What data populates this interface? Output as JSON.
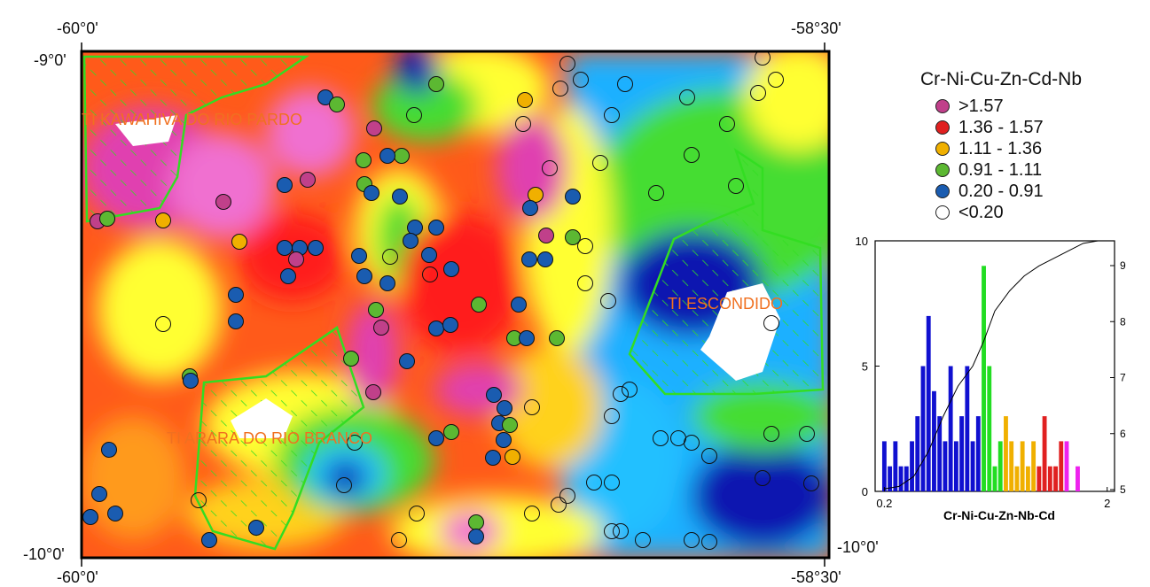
{
  "map": {
    "coords": {
      "top_left": "-60°0'",
      "top_right": "-58°30'",
      "lat_top": "-9°0'",
      "lat_bottom_left": "-10°0'",
      "lat_bottom_right": "-10°0'",
      "bottom_left": "-60°0'",
      "bottom_right": "-58°30'"
    },
    "areas": {
      "kawahiva": "TI KAWAHIVA DO RIO PARDO",
      "escondido": "TI ESCONDIDO",
      "arara": "TI ARARA DO RIO BRANCO"
    },
    "colors": {
      "magenta": "#e040b0",
      "red": "#ff1a1a",
      "orange": "#ff8c00",
      "yellow": "#ffff33",
      "green": "#44dd33",
      "cyan": "#22c0ff",
      "blue": "#0a18b0",
      "reserve": "#33dd22",
      "reserve_label": "#f07020"
    }
  },
  "legend": {
    "title": "Cr-Ni-Cu-Zn-Cd-Nb",
    "classes": [
      {
        "label": ">1.57",
        "color": "#c0408a"
      },
      {
        "label": "1.36 - 1.57",
        "color": "#e02020"
      },
      {
        "label": "1.11 - 1.36",
        "color": "#f0b000"
      },
      {
        "label": "0.91 - 1.11",
        "color": "#5cb832"
      },
      {
        "label": "0.20 - 0.91",
        "color": "#1a5cb0"
      },
      {
        "label": "<0.20",
        "color": "#ffffff"
      }
    ]
  },
  "chart_data": {
    "type": "bar",
    "title": "",
    "xlabel": "Cr-Ni-Cu-Zn-Nb-Cd",
    "ylabel": "",
    "x_tick_labels": [
      "0.2",
      "2"
    ],
    "y_tick_labels": [
      "0",
      "5",
      "10"
    ],
    "y2_tick_labels": [
      "5",
      "6",
      "7",
      "8",
      "9"
    ],
    "ylim": [
      0,
      10
    ],
    "bars": [
      {
        "x": 0.2,
        "value": 2,
        "color": "#1010d0"
      },
      {
        "x": 0.23,
        "value": 1,
        "color": "#1010d0"
      },
      {
        "x": 0.26,
        "value": 2,
        "color": "#1010d0"
      },
      {
        "x": 0.29,
        "value": 1,
        "color": "#1010d0"
      },
      {
        "x": 0.32,
        "value": 1,
        "color": "#1010d0"
      },
      {
        "x": 0.35,
        "value": 2,
        "color": "#1010d0"
      },
      {
        "x": 0.38,
        "value": 3,
        "color": "#1010d0"
      },
      {
        "x": 0.41,
        "value": 5,
        "color": "#1010d0"
      },
      {
        "x": 0.44,
        "value": 7,
        "color": "#1010d0"
      },
      {
        "x": 0.47,
        "value": 4,
        "color": "#1010d0"
      },
      {
        "x": 0.5,
        "value": 3,
        "color": "#1010d0"
      },
      {
        "x": 0.53,
        "value": 2,
        "color": "#1010d0"
      },
      {
        "x": 0.56,
        "value": 5,
        "color": "#1010d0"
      },
      {
        "x": 0.59,
        "value": 2,
        "color": "#1010d0"
      },
      {
        "x": 0.62,
        "value": 3,
        "color": "#1010d0"
      },
      {
        "x": 0.65,
        "value": 5,
        "color": "#1010d0"
      },
      {
        "x": 0.68,
        "value": 2,
        "color": "#1010d0"
      },
      {
        "x": 0.71,
        "value": 3,
        "color": "#1010d0"
      },
      {
        "x": 0.74,
        "value": 9,
        "color": "#22dd22"
      },
      {
        "x": 0.77,
        "value": 5,
        "color": "#22dd22"
      },
      {
        "x": 0.8,
        "value": 1,
        "color": "#22dd22"
      },
      {
        "x": 0.83,
        "value": 2,
        "color": "#22dd22"
      },
      {
        "x": 0.86,
        "value": 3,
        "color": "#f0b000"
      },
      {
        "x": 0.89,
        "value": 2,
        "color": "#f0b000"
      },
      {
        "x": 0.92,
        "value": 1,
        "color": "#f0b000"
      },
      {
        "x": 0.95,
        "value": 2,
        "color": "#f0b000"
      },
      {
        "x": 0.98,
        "value": 1,
        "color": "#f0b000"
      },
      {
        "x": 1.01,
        "value": 2,
        "color": "#f0b000"
      },
      {
        "x": 1.04,
        "value": 1,
        "color": "#e02020"
      },
      {
        "x": 1.07,
        "value": 3,
        "color": "#e02020"
      },
      {
        "x": 1.1,
        "value": 1,
        "color": "#e02020"
      },
      {
        "x": 1.13,
        "value": 1,
        "color": "#e02020"
      },
      {
        "x": 1.16,
        "value": 2,
        "color": "#e02020"
      },
      {
        "x": 1.19,
        "value": 2,
        "color": "#ee22ee"
      },
      {
        "x": 1.25,
        "value": 1,
        "color": "#ee22ee"
      }
    ],
    "cumulative_line": [
      [
        0.2,
        0.1
      ],
      [
        0.28,
        0.2
      ],
      [
        0.36,
        0.6
      ],
      [
        0.44,
        1.6
      ],
      [
        0.52,
        3.0
      ],
      [
        0.6,
        4.2
      ],
      [
        0.68,
        5.0
      ],
      [
        0.74,
        6.0
      ],
      [
        0.8,
        7.2
      ],
      [
        0.88,
        8.0
      ],
      [
        0.96,
        8.6
      ],
      [
        1.04,
        9.0
      ],
      [
        1.12,
        9.3
      ],
      [
        1.2,
        9.6
      ],
      [
        1.28,
        9.9
      ],
      [
        1.36,
        10.0
      ]
    ],
    "xlim": [
      0.15,
      1.45
    ]
  }
}
